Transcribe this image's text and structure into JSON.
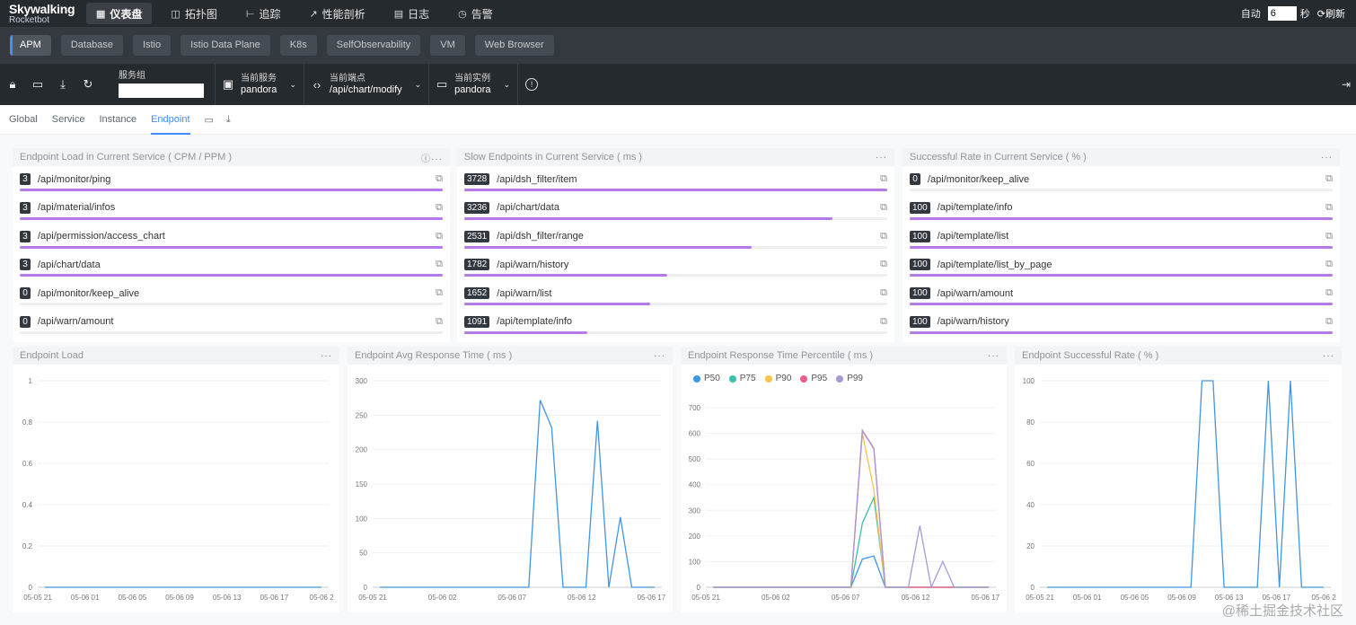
{
  "app": {
    "logo_top": "Skywalking",
    "logo_bottom": "Rocketbot"
  },
  "nav": {
    "items": [
      {
        "label": "仪表盘",
        "icon": "dashboard-icon",
        "glyph": "▦",
        "active": true
      },
      {
        "label": "拓扑图",
        "icon": "topology-icon",
        "glyph": "◫",
        "active": false
      },
      {
        "label": "追踪",
        "icon": "trace-icon",
        "glyph": "⊢",
        "active": false
      },
      {
        "label": "性能剖析",
        "icon": "profile-icon",
        "glyph": "↗",
        "active": false
      },
      {
        "label": "日志",
        "icon": "log-icon",
        "glyph": "▤",
        "active": false
      },
      {
        "label": "告警",
        "icon": "alarm-icon",
        "glyph": "◷",
        "active": false
      }
    ],
    "auto_label": "自动",
    "interval_value": "6",
    "seconds_label": "秒",
    "refresh_label": "刷新"
  },
  "layers": [
    "APM",
    "Database",
    "Istio",
    "Istio Data Plane",
    "K8s",
    "SelfObservability",
    "VM",
    "Web Browser"
  ],
  "selectors": {
    "group_label": "服务组",
    "group_value": "",
    "service_label": "当前服务",
    "service_value": "pandora",
    "endpoint_label": "当前端点",
    "endpoint_value": "/api/chart/modify",
    "instance_label": "当前实例",
    "instance_value": "pandora"
  },
  "view_tabs": [
    "Global",
    "Service",
    "Instance",
    "Endpoint"
  ],
  "active_view_tab": "Endpoint",
  "top_cards": [
    {
      "title": "Endpoint Load in Current Service ( CPM / PPM )",
      "has_info": true,
      "items": [
        {
          "value": "3",
          "label": "/api/monitor/ping",
          "fill": 1.0
        },
        {
          "value": "3",
          "label": "/api/material/infos",
          "fill": 1.0
        },
        {
          "value": "3",
          "label": "/api/permission/access_chart",
          "fill": 1.0
        },
        {
          "value": "3",
          "label": "/api/chart/data",
          "fill": 1.0
        },
        {
          "value": "0",
          "label": "/api/monitor/keep_alive",
          "fill": 0.0
        },
        {
          "value": "0",
          "label": "/api/warn/amount",
          "fill": 0.0
        }
      ]
    },
    {
      "title": "Slow Endpoints in Current Service ( ms )",
      "has_info": false,
      "items": [
        {
          "value": "3728",
          "label": "/api/dsh_filter/item",
          "fill": 1.0
        },
        {
          "value": "3236",
          "label": "/api/chart/data",
          "fill": 0.87
        },
        {
          "value": "2531",
          "label": "/api/dsh_filter/range",
          "fill": 0.68
        },
        {
          "value": "1782",
          "label": "/api/warn/history",
          "fill": 0.48
        },
        {
          "value": "1652",
          "label": "/api/warn/list",
          "fill": 0.44
        },
        {
          "value": "1091",
          "label": "/api/template/info",
          "fill": 0.29
        }
      ]
    },
    {
      "title": "Successful Rate in Current Service ( % )",
      "has_info": false,
      "items": [
        {
          "value": "0",
          "label": "/api/monitor/keep_alive",
          "fill": 0.0
        },
        {
          "value": "100",
          "label": "/api/template/info",
          "fill": 1.0
        },
        {
          "value": "100",
          "label": "/api/template/list",
          "fill": 1.0
        },
        {
          "value": "100",
          "label": "/api/template/list_by_page",
          "fill": 1.0
        },
        {
          "value": "100",
          "label": "/api/warn/amount",
          "fill": 1.0
        },
        {
          "value": "100",
          "label": "/api/warn/history",
          "fill": 1.0
        }
      ]
    }
  ],
  "chart_data": [
    {
      "type": "line",
      "title": "Endpoint Load",
      "ylim": [
        0,
        1
      ],
      "yticks": [
        "0",
        "0.2",
        "0.4",
        "0.6",
        "0.8",
        "1"
      ],
      "xticks": [
        "05-05 21",
        "05-06 01",
        "05-06 05",
        "05-06 09",
        "05-06 13",
        "05-06 17",
        "05-06 2"
      ],
      "series": [
        {
          "color": "#3f96e3",
          "values": [
            0,
            0,
            0,
            0,
            0,
            0,
            0,
            0,
            0,
            0,
            0,
            0,
            0,
            0,
            0,
            0,
            0,
            0,
            0,
            0,
            0,
            0,
            0,
            0
          ]
        }
      ]
    },
    {
      "type": "line",
      "title": "Endpoint Avg Response Time ( ms )",
      "ylim": [
        0,
        300
      ],
      "yticks": [
        "0",
        "50",
        "100",
        "150",
        "200",
        "250",
        "300"
      ],
      "xticks": [
        "05-05 21",
        "05-06 02",
        "05-06 07",
        "05-06 12",
        "05-06 17"
      ],
      "series": [
        {
          "color": "#3f96e3",
          "values": [
            0,
            0,
            0,
            0,
            0,
            0,
            0,
            0,
            0,
            0,
            0,
            0,
            0,
            0,
            272,
            232,
            0,
            0,
            0,
            242,
            0,
            102,
            0,
            0,
            0
          ]
        }
      ]
    },
    {
      "type": "line",
      "title": "Endpoint Response Time Percentile ( ms )",
      "ylim": [
        0,
        700
      ],
      "yticks": [
        "0",
        "100",
        "200",
        "300",
        "400",
        "500",
        "600",
        "700"
      ],
      "xticks": [
        "05-05 21",
        "05-06 02",
        "05-06 07",
        "05-06 12",
        "05-06 17"
      ],
      "series": [
        {
          "name": "P50",
          "color": "#3f96e3",
          "values": [
            0,
            0,
            0,
            0,
            0,
            0,
            0,
            0,
            0,
            0,
            0,
            0,
            0,
            110,
            122,
            0,
            0,
            0,
            0,
            0,
            0,
            0,
            0,
            0,
            0
          ]
        },
        {
          "name": "P75",
          "color": "#3cbfae",
          "values": [
            0,
            0,
            0,
            0,
            0,
            0,
            0,
            0,
            0,
            0,
            0,
            0,
            0,
            250,
            350,
            0,
            0,
            0,
            0,
            0,
            0,
            0,
            0,
            0,
            0
          ]
        },
        {
          "name": "P90",
          "color": "#f7c34a",
          "values": [
            0,
            0,
            0,
            0,
            0,
            0,
            0,
            0,
            0,
            0,
            0,
            0,
            0,
            600,
            380,
            0,
            0,
            0,
            0,
            0,
            0,
            0,
            0,
            0,
            0
          ]
        },
        {
          "name": "P95",
          "color": "#ef5c86",
          "values": [
            0,
            0,
            0,
            0,
            0,
            0,
            0,
            0,
            0,
            0,
            0,
            0,
            0,
            610,
            540,
            0,
            0,
            0,
            0,
            0,
            0,
            0,
            0,
            0,
            0
          ]
        },
        {
          "name": "P99",
          "color": "#a999d8",
          "values": [
            0,
            0,
            0,
            0,
            0,
            0,
            0,
            0,
            0,
            0,
            0,
            0,
            0,
            612,
            542,
            0,
            0,
            0,
            240,
            0,
            100,
            0,
            0,
            0,
            0
          ]
        }
      ]
    },
    {
      "type": "line",
      "title": "Endpoint Successful Rate ( % )",
      "ylim": [
        0,
        100
      ],
      "yticks": [
        "0",
        "20",
        "40",
        "60",
        "80",
        "100"
      ],
      "xticks": [
        "05-05 21",
        "05-06 01",
        "05-06 05",
        "05-06 09",
        "05-06 13",
        "05-06 17",
        "05-06 2"
      ],
      "series": [
        {
          "color": "#3f96e3",
          "values": [
            0,
            0,
            0,
            0,
            0,
            0,
            0,
            0,
            0,
            0,
            0,
            0,
            0,
            0,
            100,
            100,
            0,
            0,
            0,
            0,
            100,
            0,
            100,
            0,
            0,
            0
          ]
        }
      ]
    }
  ],
  "watermark": "@稀土掘金技术社区"
}
